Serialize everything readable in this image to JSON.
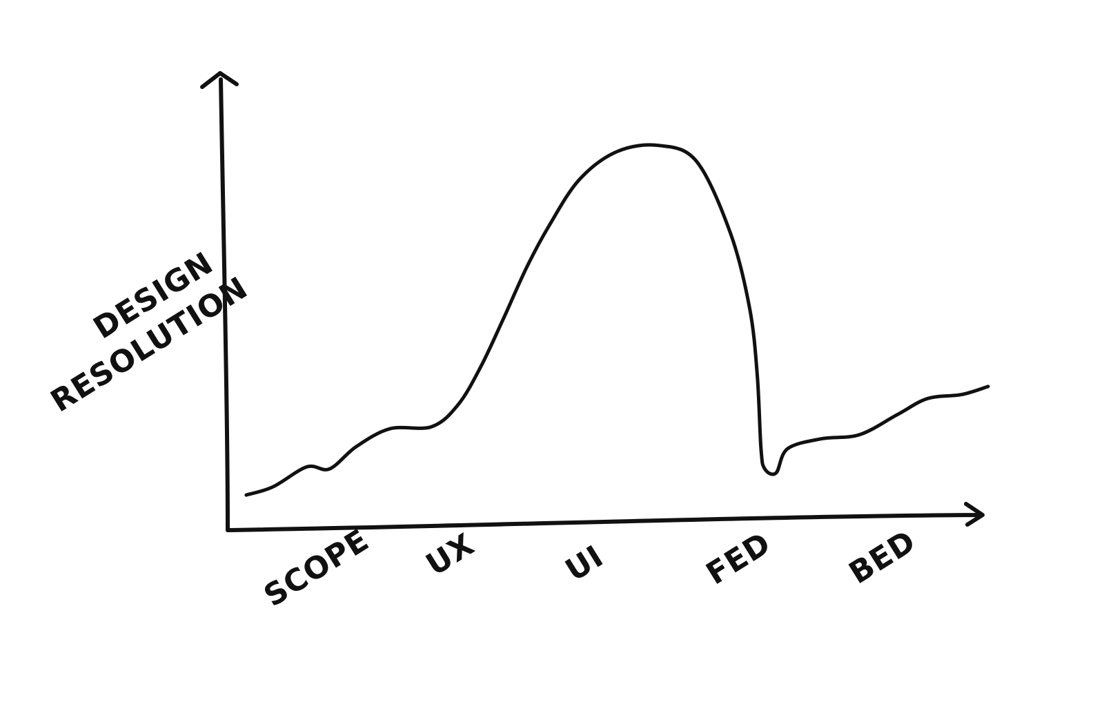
{
  "chart_data": {
    "type": "line",
    "ylabel_lines": [
      "DESIGN",
      "RESOLUTION"
    ],
    "categories": [
      "SCOPE",
      "UX",
      "UI",
      "FED",
      "BED"
    ],
    "xlim": [
      0,
      10
    ],
    "ylim": [
      0,
      10
    ],
    "series": [
      {
        "x": [
          0.2,
          0.55,
          1.0,
          1.3,
          1.65,
          2.1,
          2.65,
          3.0,
          3.3,
          3.6,
          3.9,
          4.2,
          4.6,
          5.1,
          5.65,
          6.15,
          6.6,
          6.85,
          6.95,
          7.0,
          7.05,
          7.2,
          7.35,
          7.8,
          8.3,
          8.8,
          9.2,
          9.65,
          10.0
        ],
        "y": [
          0.6,
          0.8,
          1.3,
          1.25,
          1.8,
          2.25,
          2.3,
          2.85,
          3.8,
          5.0,
          6.25,
          7.3,
          8.45,
          9.15,
          9.3,
          8.9,
          7.1,
          5.25,
          3.6,
          1.75,
          1.25,
          1.15,
          1.75,
          2.0,
          2.1,
          2.6,
          3.0,
          3.1,
          3.3
        ]
      }
    ],
    "grid": false,
    "legend": false
  },
  "colors": {
    "ink": "#111111",
    "paper": "#ffffff"
  }
}
